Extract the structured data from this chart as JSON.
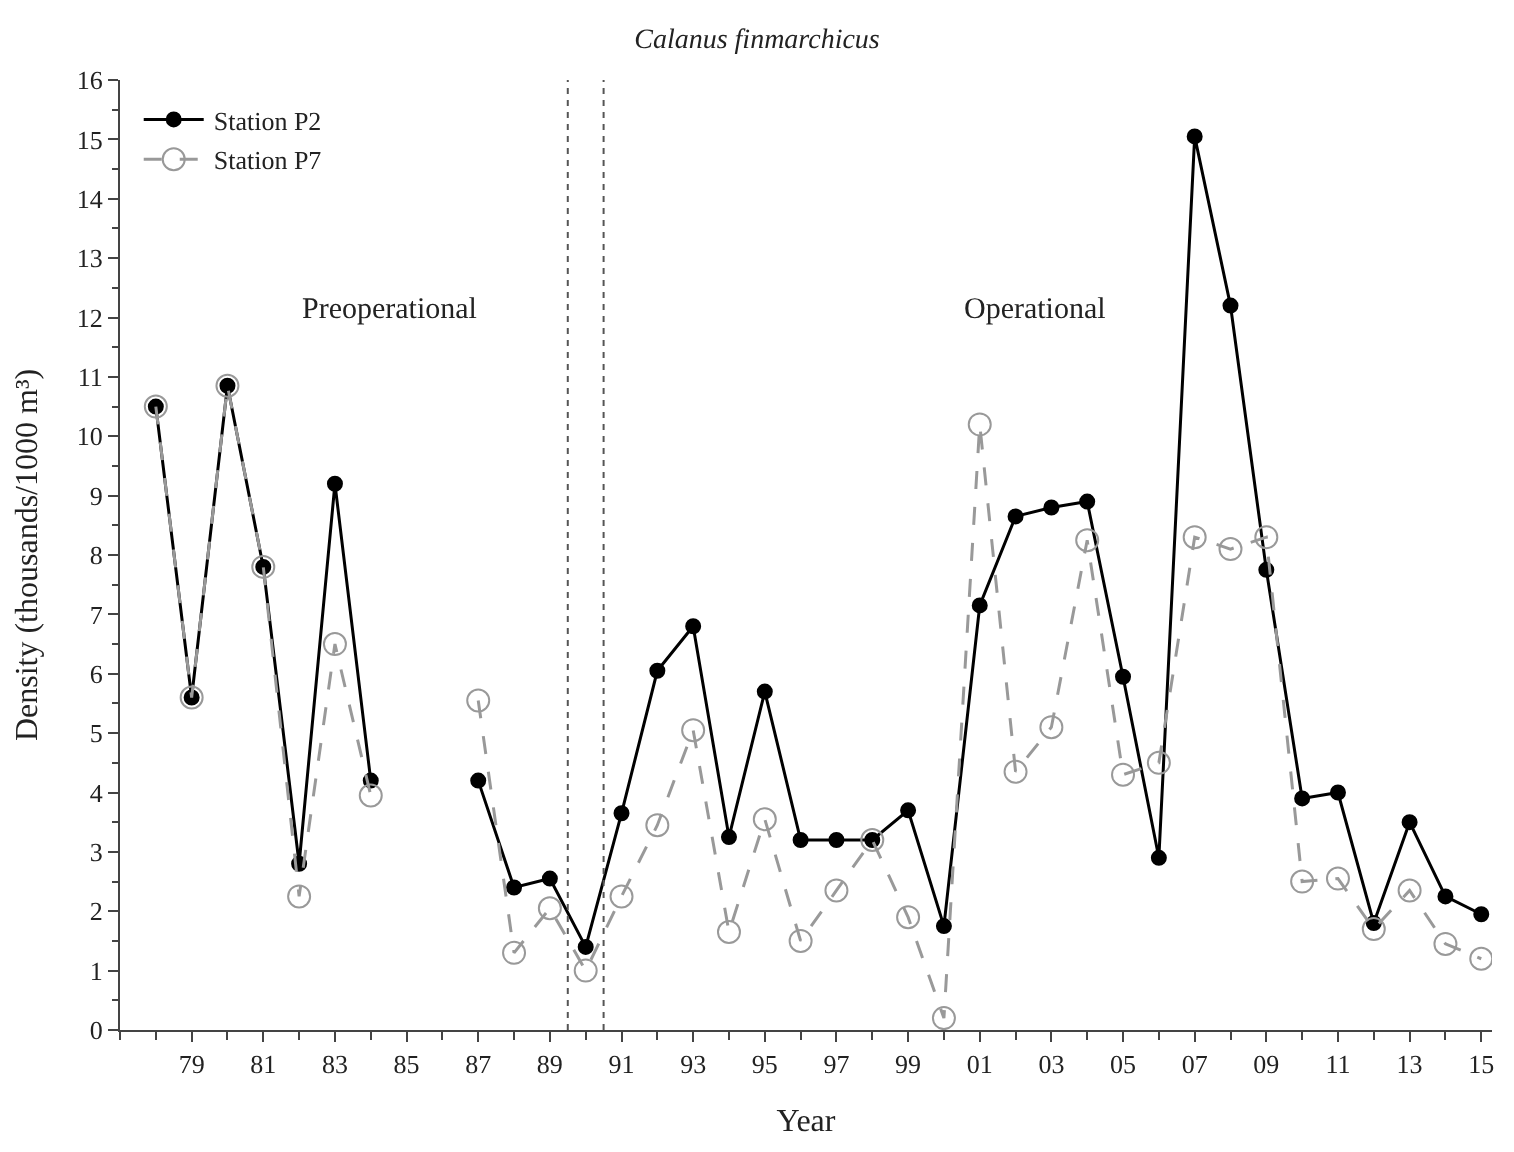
{
  "chart_data": {
    "type": "line",
    "title": "Calanus finmarchicus",
    "xlabel": "Year",
    "ylabel": "Density (thousands/1000 m³)",
    "x": [
      1978,
      1979,
      1980,
      1981,
      1982,
      1983,
      1984,
      1985,
      1986,
      1987,
      1988,
      1989,
      1990,
      1991,
      1992,
      1993,
      1994,
      1995,
      1996,
      1997,
      1998,
      1999,
      2000,
      2001,
      2002,
      2003,
      2004,
      2005,
      2006,
      2007,
      2008,
      2009,
      2010,
      2011,
      2012,
      2013,
      2014,
      2015
    ],
    "series": [
      {
        "name": "Station P2",
        "color": "#000000",
        "line_style": "solid",
        "values": [
          10.5,
          5.6,
          10.85,
          7.8,
          2.8,
          9.2,
          4.2,
          null,
          null,
          4.2,
          2.4,
          2.55,
          1.4,
          3.65,
          6.05,
          6.8,
          3.25,
          5.7,
          3.2,
          3.2,
          3.2,
          3.7,
          1.75,
          7.15,
          8.65,
          8.8,
          8.9,
          5.95,
          2.9,
          15.05,
          12.2,
          7.75,
          3.9,
          4.0,
          1.8,
          3.5,
          2.25,
          1.95
        ]
      },
      {
        "name": "Station P7",
        "color": "#999999",
        "line_style": "dashed",
        "values": [
          10.5,
          5.6,
          10.85,
          7.8,
          2.25,
          6.5,
          3.95,
          null,
          null,
          5.55,
          1.3,
          2.05,
          1.0,
          2.25,
          3.45,
          5.05,
          1.65,
          3.55,
          1.5,
          2.35,
          3.2,
          1.9,
          0.2,
          10.2,
          4.35,
          5.1,
          8.25,
          4.3,
          4.5,
          8.3,
          8.1,
          8.3,
          2.5,
          2.55,
          1.7,
          2.35,
          1.45,
          1.2
        ]
      }
    ],
    "xlim": [
      1977,
      2015.3
    ],
    "xticks": [
      {
        "value": 1979,
        "label": "79"
      },
      {
        "value": 1981,
        "label": "81"
      },
      {
        "value": 1983,
        "label": "83"
      },
      {
        "value": 1985,
        "label": "85"
      },
      {
        "value": 1987,
        "label": "87"
      },
      {
        "value": 1989,
        "label": "89"
      },
      {
        "value": 1991,
        "label": "91"
      },
      {
        "value": 1993,
        "label": "93"
      },
      {
        "value": 1995,
        "label": "95"
      },
      {
        "value": 1997,
        "label": "97"
      },
      {
        "value": 1999,
        "label": "99"
      },
      {
        "value": 2001,
        "label": "01"
      },
      {
        "value": 2003,
        "label": "03"
      },
      {
        "value": 2005,
        "label": "05"
      },
      {
        "value": 2007,
        "label": "07"
      },
      {
        "value": 2009,
        "label": "09"
      },
      {
        "value": 2011,
        "label": "11"
      },
      {
        "value": 2013,
        "label": "13"
      },
      {
        "value": 2015,
        "label": "15"
      }
    ],
    "ylim": [
      0,
      16
    ],
    "yticks": [
      0,
      1,
      2,
      3,
      4,
      5,
      6,
      7,
      8,
      9,
      10,
      11,
      12,
      13,
      14,
      15,
      16
    ],
    "ref_lines": [
      {
        "axis": "x",
        "value": 1989.5,
        "line_style": "dotted",
        "color": "#555555"
      },
      {
        "axis": "x",
        "value": 1990.5,
        "line_style": "dotted",
        "color": "#555555"
      }
    ],
    "annotations": [
      "Preoperational",
      "Operational"
    ],
    "marker": "circle",
    "legend": "top left"
  }
}
